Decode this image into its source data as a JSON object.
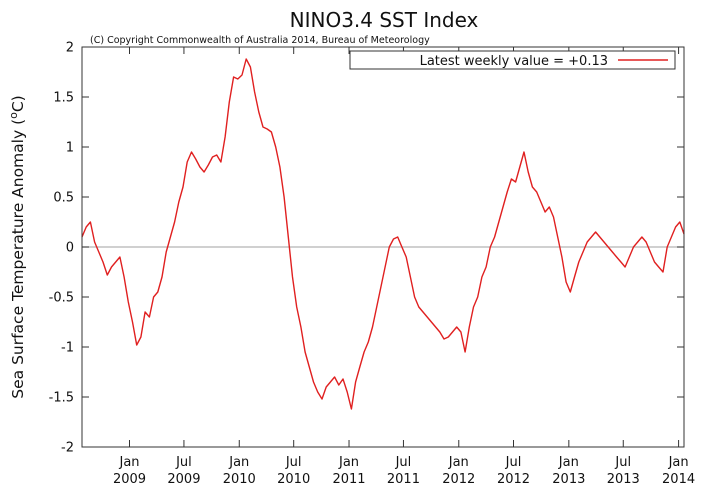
{
  "chart_data": {
    "type": "line",
    "title": "NINO3.4 SST Index",
    "subtitle": "(C) Copyright Commonwealth of Australia 2014, Bureau of Meteorology",
    "xlabel": "",
    "ylabel": "Sea Surface Temperature Anomaly (°C)",
    "ylabel_parts": {
      "main": "Sea Surface Temperature Anomaly (",
      "unit_sup": "o",
      "unit": "C)"
    },
    "ylim": [
      -2,
      2
    ],
    "xlim": [
      "2008-07-27",
      "2014-01-19"
    ],
    "y_ticks": [
      {
        "value": 2,
        "label": "2"
      },
      {
        "value": 1.5,
        "label": "1.5"
      },
      {
        "value": 1,
        "label": "1"
      },
      {
        "value": 0.5,
        "label": "0.5"
      },
      {
        "value": 0,
        "label": "0"
      },
      {
        "value": -0.5,
        "label": "-0.5"
      },
      {
        "value": -1,
        "label": "-1"
      },
      {
        "value": -1.5,
        "label": "-1.5"
      },
      {
        "value": -2,
        "label": "-2"
      }
    ],
    "x_ticks": [
      {
        "date": "2009-01-01",
        "month": "Jan",
        "year": "2009"
      },
      {
        "date": "2009-07-01",
        "month": "Jul",
        "year": "2009"
      },
      {
        "date": "2010-01-01",
        "month": "Jan",
        "year": "2010"
      },
      {
        "date": "2010-07-01",
        "month": "Jul",
        "year": "2010"
      },
      {
        "date": "2011-01-01",
        "month": "Jan",
        "year": "2011"
      },
      {
        "date": "2011-07-01",
        "month": "Jul",
        "year": "2011"
      },
      {
        "date": "2012-01-01",
        "month": "Jan",
        "year": "2012"
      },
      {
        "date": "2012-07-01",
        "month": "Jul",
        "year": "2012"
      },
      {
        "date": "2013-01-01",
        "month": "Jan",
        "year": "2013"
      },
      {
        "date": "2013-07-01",
        "month": "Jul",
        "year": "2013"
      },
      {
        "date": "2014-01-01",
        "month": "Jan",
        "year": "2014"
      }
    ],
    "zero_line": true,
    "legend": {
      "position": "top-right",
      "label": "Latest weekly value = +0.13"
    },
    "grid": false,
    "colors": {
      "series": "#e02020",
      "zero_line": "#b4b4b4",
      "axes": "#333333"
    },
    "series": [
      {
        "x": [
          "2008-07-27",
          "2008-08-10",
          "2008-08-24",
          "2008-09-07",
          "2008-09-21",
          "2008-10-05",
          "2008-10-19",
          "2008-11-02",
          "2008-11-16",
          "2008-11-30",
          "2008-12-14",
          "2008-12-28",
          "2009-01-11",
          "2009-01-25",
          "2009-02-08",
          "2009-02-22",
          "2009-03-08",
          "2009-03-22",
          "2009-04-05",
          "2009-04-19",
          "2009-05-03",
          "2009-05-17",
          "2009-05-31",
          "2009-06-14",
          "2009-06-28",
          "2009-07-12",
          "2009-07-26",
          "2009-08-09",
          "2009-08-23",
          "2009-09-06",
          "2009-09-20",
          "2009-10-04",
          "2009-10-18",
          "2009-11-01",
          "2009-11-15",
          "2009-11-29",
          "2009-12-13",
          "2009-12-27",
          "2010-01-10",
          "2010-01-24",
          "2010-02-07",
          "2010-02-21",
          "2010-03-07",
          "2010-03-21",
          "2010-04-04",
          "2010-04-18",
          "2010-05-02",
          "2010-05-16",
          "2010-05-30",
          "2010-06-13",
          "2010-06-27",
          "2010-07-11",
          "2010-07-25",
          "2010-08-08",
          "2010-08-22",
          "2010-09-05",
          "2010-09-19",
          "2010-10-03",
          "2010-10-17",
          "2010-10-31",
          "2010-11-14",
          "2010-11-28",
          "2010-12-12",
          "2010-12-26",
          "2011-01-09",
          "2011-01-23",
          "2011-02-06",
          "2011-02-20",
          "2011-03-06",
          "2011-03-20",
          "2011-04-03",
          "2011-04-17",
          "2011-05-01",
          "2011-05-15",
          "2011-05-29",
          "2011-06-12",
          "2011-06-26",
          "2011-07-10",
          "2011-07-24",
          "2011-08-07",
          "2011-08-21",
          "2011-09-04",
          "2011-09-18",
          "2011-10-02",
          "2011-10-16",
          "2011-10-30",
          "2011-11-13",
          "2011-11-27",
          "2011-12-11",
          "2011-12-25",
          "2012-01-08",
          "2012-01-22",
          "2012-02-05",
          "2012-02-19",
          "2012-03-04",
          "2012-03-18",
          "2012-04-01",
          "2012-04-15",
          "2012-04-29",
          "2012-05-13",
          "2012-05-27",
          "2012-06-10",
          "2012-06-24",
          "2012-07-08",
          "2012-07-22",
          "2012-08-05",
          "2012-08-19",
          "2012-09-02",
          "2012-09-16",
          "2012-09-30",
          "2012-10-14",
          "2012-10-28",
          "2012-11-11",
          "2012-11-25",
          "2012-12-09",
          "2012-12-23",
          "2013-01-06",
          "2013-01-20",
          "2013-02-03",
          "2013-02-17",
          "2013-03-03",
          "2013-03-17",
          "2013-03-31",
          "2013-04-14",
          "2013-04-28",
          "2013-05-12",
          "2013-05-26",
          "2013-06-09",
          "2013-06-23",
          "2013-07-07",
          "2013-07-21",
          "2013-08-04",
          "2013-08-18",
          "2013-09-01",
          "2013-09-15",
          "2013-09-29",
          "2013-10-13",
          "2013-10-27",
          "2013-11-10",
          "2013-11-24",
          "2013-12-08",
          "2013-12-22",
          "2014-01-05",
          "2014-01-19"
        ],
        "y": [
          0.1,
          0.2,
          0.25,
          0.05,
          -0.05,
          -0.15,
          -0.28,
          -0.2,
          -0.15,
          -0.1,
          -0.3,
          -0.55,
          -0.75,
          -0.98,
          -0.9,
          -0.65,
          -0.7,
          -0.5,
          -0.45,
          -0.3,
          -0.05,
          0.1,
          0.25,
          0.45,
          0.6,
          0.85,
          0.95,
          0.88,
          0.8,
          0.75,
          0.82,
          0.9,
          0.92,
          0.85,
          1.1,
          1.45,
          1.7,
          1.68,
          1.72,
          1.88,
          1.8,
          1.55,
          1.35,
          1.2,
          1.18,
          1.15,
          1.0,
          0.8,
          0.5,
          0.1,
          -0.3,
          -0.6,
          -0.8,
          -1.05,
          -1.2,
          -1.35,
          -1.45,
          -1.52,
          -1.4,
          -1.35,
          -1.3,
          -1.38,
          -1.32,
          -1.45,
          -1.62,
          -1.35,
          -1.2,
          -1.05,
          -0.95,
          -0.8,
          -0.6,
          -0.4,
          -0.2,
          0.0,
          0.08,
          0.1,
          0.0,
          -0.1,
          -0.3,
          -0.5,
          -0.6,
          -0.65,
          -0.7,
          -0.75,
          -0.8,
          -0.85,
          -0.92,
          -0.9,
          -0.85,
          -0.8,
          -0.85,
          -1.05,
          -0.8,
          -0.6,
          -0.5,
          -0.3,
          -0.2,
          0.0,
          0.1,
          0.25,
          0.4,
          0.55,
          0.68,
          0.65,
          0.8,
          0.95,
          0.75,
          0.6,
          0.55,
          0.45,
          0.35,
          0.4,
          0.3,
          0.1,
          -0.1,
          -0.35,
          -0.45,
          -0.3,
          -0.15,
          -0.05,
          0.05,
          0.1,
          0.15,
          0.1,
          0.05,
          0.0,
          -0.05,
          -0.1,
          -0.15,
          -0.2,
          -0.1,
          0.0,
          0.05,
          0.1,
          0.05,
          -0.05,
          -0.15,
          -0.2,
          -0.25,
          0.0,
          0.1,
          0.2,
          0.25,
          0.13
        ]
      }
    ]
  }
}
